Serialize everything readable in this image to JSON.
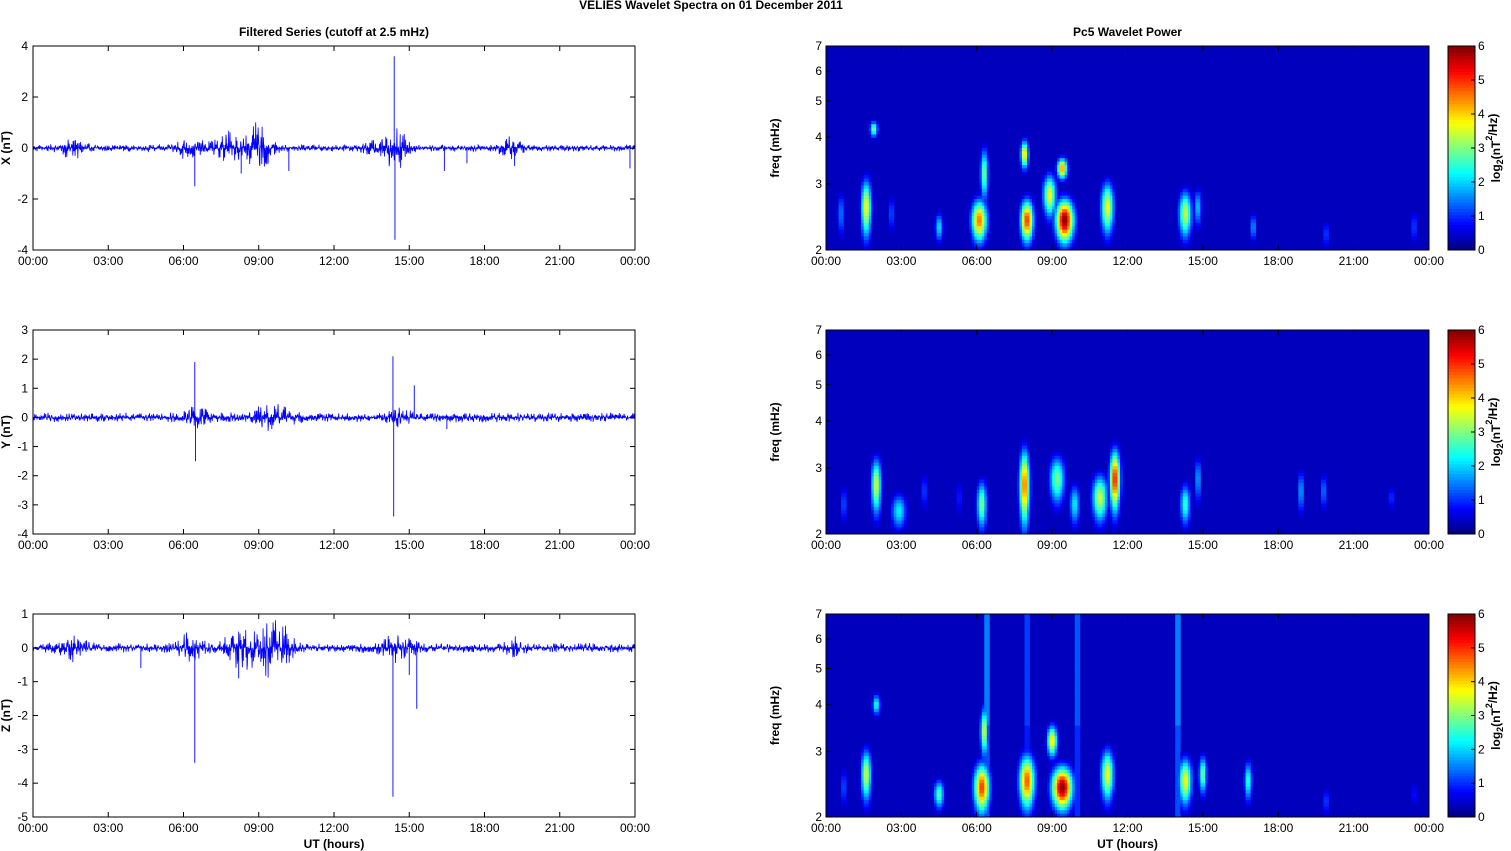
{
  "figure_title": "VELIES Wavelet Spectra on 01 December  2011",
  "chart_data": [
    {
      "type": "line",
      "title": "Filtered Series (cutoff at 2.5 mHz)",
      "xlabel": "",
      "ylabel": "X (nT)",
      "x_ticks": [
        "00:00",
        "03:00",
        "06:00",
        "09:00",
        "12:00",
        "15:00",
        "18:00",
        "21:00",
        "00:00"
      ],
      "xlim_hours": [
        0,
        24
      ],
      "ylim": [
        -4,
        4
      ],
      "y_ticks": [
        "-4",
        "-2",
        "0",
        "2",
        "4"
      ],
      "y_tick_values": [
        -4,
        -2,
        0,
        2,
        4
      ],
      "series_color": "#0000ff",
      "base_amplitude": 0.12,
      "activity": [
        [
          1.6,
          0.3,
          0.5
        ],
        [
          6.2,
          0.3,
          0.6
        ],
        [
          7.8,
          0.5,
          0.6
        ],
        [
          9.0,
          0.8,
          0.5
        ],
        [
          13.9,
          0.3,
          0.7
        ],
        [
          14.5,
          0.6,
          0.4
        ],
        [
          19.0,
          0.4,
          0.4
        ]
      ],
      "spikes": [
        [
          6.45,
          -1.5
        ],
        [
          8.3,
          -1.0
        ],
        [
          10.2,
          -0.9
        ],
        [
          14.4,
          3.6
        ],
        [
          14.43,
          -3.6
        ],
        [
          16.4,
          -0.9
        ],
        [
          17.3,
          -0.6
        ],
        [
          19.2,
          -0.7
        ],
        [
          23.8,
          -0.8
        ]
      ]
    },
    {
      "type": "line",
      "title": "",
      "xlabel": "",
      "ylabel": "Y (nT)",
      "x_ticks": [
        "00:00",
        "03:00",
        "06:00",
        "09:00",
        "12:00",
        "15:00",
        "18:00",
        "21:00",
        "00:00"
      ],
      "xlim_hours": [
        0,
        24
      ],
      "ylim": [
        -4,
        3
      ],
      "y_ticks": [
        "-4",
        "-3",
        "-2",
        "-1",
        "0",
        "1",
        "2",
        "3"
      ],
      "y_tick_values": [
        -4,
        -3,
        -2,
        -1,
        0,
        1,
        2,
        3
      ],
      "series_color": "#0000ff",
      "base_amplitude": 0.14,
      "activity": [
        [
          6.5,
          0.25,
          0.5
        ],
        [
          9.5,
          0.3,
          0.9
        ],
        [
          14.6,
          0.25,
          0.4
        ]
      ],
      "spikes": [
        [
          6.45,
          1.9
        ],
        [
          6.48,
          -1.5
        ],
        [
          14.35,
          2.1
        ],
        [
          14.38,
          -3.4
        ],
        [
          15.2,
          1.1
        ],
        [
          16.5,
          -0.4
        ]
      ]
    },
    {
      "type": "line",
      "title": "",
      "xlabel": "UT (hours)",
      "ylabel": "Z (nT)",
      "x_ticks": [
        "00:00",
        "03:00",
        "06:00",
        "09:00",
        "12:00",
        "15:00",
        "18:00",
        "21:00",
        "00:00"
      ],
      "xlim_hours": [
        0,
        24
      ],
      "ylim": [
        -5,
        1
      ],
      "y_ticks": [
        "-5",
        "-4",
        "-3",
        "-2",
        "-1",
        "0",
        "1"
      ],
      "y_tick_values": [
        -5,
        -4,
        -3,
        -2,
        -1,
        0,
        1
      ],
      "series_color": "#0000ff",
      "base_amplitude": 0.12,
      "activity": [
        [
          1.6,
          0.25,
          0.5
        ],
        [
          6.3,
          0.3,
          0.6
        ],
        [
          8.3,
          0.5,
          0.6
        ],
        [
          9.6,
          0.8,
          0.6
        ],
        [
          14.5,
          0.3,
          0.7
        ],
        [
          19.2,
          0.2,
          0.4
        ]
      ],
      "spikes": [
        [
          6.45,
          -3.4
        ],
        [
          8.2,
          -0.9
        ],
        [
          14.35,
          -4.4
        ],
        [
          15.3,
          -1.8
        ],
        [
          15.0,
          -0.8
        ],
        [
          4.3,
          -0.6
        ]
      ]
    },
    {
      "type": "heatmap",
      "title": "Pc5 Wavelet Power",
      "xlabel": "",
      "ylabel": "freq (mHz)",
      "x_ticks": [
        "00:00",
        "03:00",
        "06:00",
        "09:00",
        "12:00",
        "15:00",
        "18:00",
        "21:00",
        "00:00"
      ],
      "y_ticks": [
        "2",
        "3",
        "4",
        "5",
        "6",
        "7"
      ],
      "y_tick_values": [
        2,
        3,
        4,
        5,
        6,
        7
      ],
      "y_scale": "log",
      "ylim": [
        2,
        7
      ],
      "colorbar_label": "log2(nT^2/Hz)",
      "colorbar_ticks": [
        "0",
        "1",
        "2",
        "3",
        "4",
        "5",
        "6"
      ],
      "clim": [
        0,
        6
      ],
      "blobs": [
        [
          0.6,
          2.5,
          0.15,
          0.35,
          1.5
        ],
        [
          1.6,
          2.6,
          0.2,
          0.45,
          3.8
        ],
        [
          1.9,
          4.2,
          0.15,
          0.2,
          3.0
        ],
        [
          2.6,
          2.5,
          0.15,
          0.3,
          1.2
        ],
        [
          4.5,
          2.3,
          0.15,
          0.2,
          2.2
        ],
        [
          6.1,
          2.4,
          0.3,
          0.3,
          4.6
        ],
        [
          6.3,
          3.2,
          0.15,
          0.5,
          3.0
        ],
        [
          8.0,
          2.4,
          0.25,
          0.3,
          5.0
        ],
        [
          7.9,
          3.6,
          0.15,
          0.3,
          4.0
        ],
        [
          8.9,
          2.8,
          0.25,
          0.35,
          3.8
        ],
        [
          9.5,
          2.4,
          0.35,
          0.3,
          6.0
        ],
        [
          9.4,
          3.3,
          0.2,
          0.2,
          4.5
        ],
        [
          11.2,
          2.6,
          0.25,
          0.4,
          3.8
        ],
        [
          14.3,
          2.5,
          0.25,
          0.35,
          3.5
        ],
        [
          14.8,
          2.6,
          0.15,
          0.3,
          2.0
        ],
        [
          17.0,
          2.3,
          0.12,
          0.2,
          1.7
        ],
        [
          19.9,
          2.2,
          0.12,
          0.2,
          1.2
        ],
        [
          23.4,
          2.3,
          0.1,
          0.25,
          1.3
        ]
      ]
    },
    {
      "type": "heatmap",
      "title": "",
      "xlabel": "",
      "ylabel": "freq (mHz)",
      "x_ticks": [
        "00:00",
        "03:00",
        "06:00",
        "09:00",
        "12:00",
        "15:00",
        "18:00",
        "21:00",
        "00:00"
      ],
      "y_ticks": [
        "2",
        "3",
        "4",
        "5",
        "6",
        "7"
      ],
      "y_tick_values": [
        2,
        3,
        4,
        5,
        6,
        7
      ],
      "y_scale": "log",
      "ylim": [
        2,
        7
      ],
      "colorbar_label": "log2(nT^2/Hz)",
      "colorbar_ticks": [
        "0",
        "1",
        "2",
        "3",
        "4",
        "5",
        "6"
      ],
      "clim": [
        0,
        6
      ],
      "blobs": [
        [
          0.7,
          2.4,
          0.15,
          0.3,
          1.2
        ],
        [
          2.0,
          2.7,
          0.2,
          0.45,
          3.5
        ],
        [
          2.9,
          2.3,
          0.3,
          0.25,
          2.2
        ],
        [
          3.9,
          2.6,
          0.12,
          0.3,
          1.2
        ],
        [
          5.3,
          2.5,
          0.12,
          0.3,
          1.0
        ],
        [
          6.2,
          2.4,
          0.2,
          0.35,
          3.0
        ],
        [
          7.9,
          2.7,
          0.2,
          0.6,
          4.6
        ],
        [
          9.2,
          2.8,
          0.3,
          0.4,
          3.0
        ],
        [
          9.9,
          2.4,
          0.2,
          0.3,
          2.2
        ],
        [
          10.9,
          2.5,
          0.3,
          0.35,
          3.5
        ],
        [
          11.5,
          2.8,
          0.2,
          0.5,
          5.2
        ],
        [
          14.3,
          2.4,
          0.2,
          0.3,
          2.6
        ],
        [
          14.8,
          2.8,
          0.12,
          0.4,
          1.8
        ],
        [
          18.9,
          2.6,
          0.12,
          0.35,
          1.8
        ],
        [
          19.8,
          2.6,
          0.12,
          0.3,
          1.5
        ],
        [
          22.5,
          2.5,
          0.1,
          0.2,
          1.2
        ]
      ]
    },
    {
      "type": "heatmap",
      "title": "",
      "xlabel": "UT (hours)",
      "ylabel": "freq (mHz)",
      "x_ticks": [
        "00:00",
        "03:00",
        "06:00",
        "09:00",
        "12:00",
        "15:00",
        "18:00",
        "21:00",
        "00:00"
      ],
      "y_ticks": [
        "2",
        "3",
        "4",
        "5",
        "6",
        "7"
      ],
      "y_tick_values": [
        2,
        3,
        4,
        5,
        6,
        7
      ],
      "y_scale": "log",
      "ylim": [
        2,
        7
      ],
      "colorbar_label": "log2(nT^2/Hz)",
      "colorbar_ticks": [
        "0",
        "1",
        "2",
        "3",
        "4",
        "5",
        "6"
      ],
      "clim": [
        0,
        6
      ],
      "blobs": [
        [
          0.7,
          2.4,
          0.15,
          0.3,
          1.2
        ],
        [
          1.6,
          2.6,
          0.2,
          0.4,
          3.5
        ],
        [
          2.0,
          4.0,
          0.15,
          0.25,
          2.5
        ],
        [
          4.5,
          2.3,
          0.2,
          0.2,
          2.8
        ],
        [
          6.2,
          2.4,
          0.3,
          0.35,
          5.0
        ],
        [
          6.3,
          3.4,
          0.15,
          0.5,
          3.5
        ],
        [
          8.0,
          2.5,
          0.3,
          0.4,
          4.8
        ],
        [
          9.4,
          2.4,
          0.4,
          0.3,
          6.0
        ],
        [
          9.0,
          3.2,
          0.2,
          0.3,
          4.0
        ],
        [
          11.2,
          2.6,
          0.25,
          0.4,
          3.8
        ],
        [
          14.3,
          2.5,
          0.25,
          0.35,
          3.8
        ],
        [
          15.0,
          2.6,
          0.15,
          0.3,
          3.0
        ],
        [
          16.8,
          2.5,
          0.15,
          0.3,
          2.6
        ],
        [
          19.9,
          2.2,
          0.12,
          0.2,
          1.2
        ],
        [
          23.4,
          2.3,
          0.1,
          0.2,
          1.0
        ]
      ],
      "streaks": [
        [
          6.4,
          3.0
        ],
        [
          14.0,
          3.0
        ],
        [
          10.0,
          2.5
        ],
        [
          8.0,
          2.2
        ]
      ]
    }
  ]
}
